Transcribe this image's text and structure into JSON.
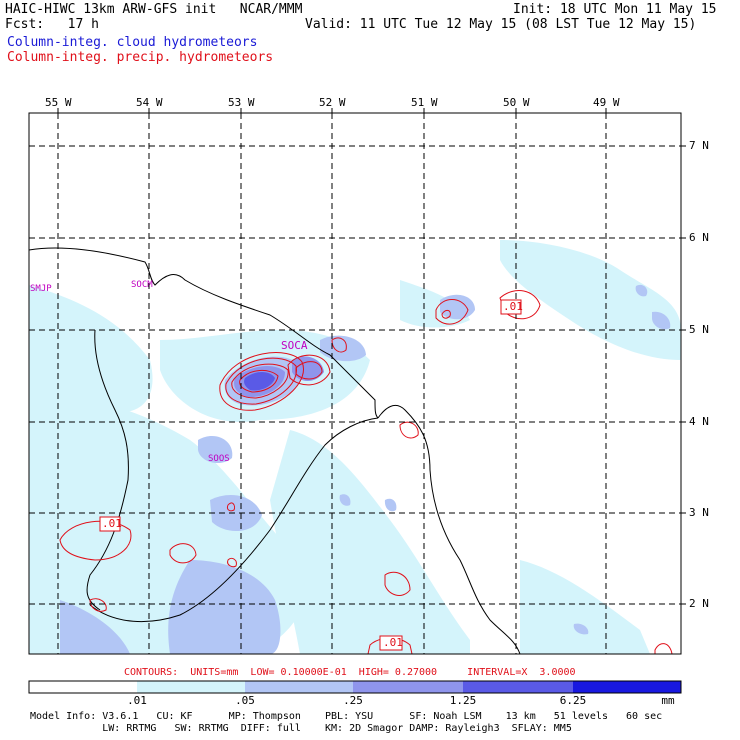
{
  "header": {
    "left_line1": "HAIC-HIWC 13km ARW-GFS init   NCAR/MMM",
    "left_line2": "Fcst:   17 h",
    "right_line1": "Init: 18 UTC Mon 11 May 15",
    "right_line2": "Valid: 11 UTC Tue 12 May 15 (08 LST Tue 12 May 15)",
    "legend_cloud": "Column-integ. cloud hydrometeors",
    "legend_precip": "Column-integ. precip. hydrometeors"
  },
  "map": {
    "lon_labels": [
      "55 W",
      "54 W",
      "53 W",
      "52 W",
      "51 W",
      "50 W",
      "49 W"
    ],
    "lat_labels": [
      "7 N",
      "6 N",
      "5 N",
      "4 N",
      "3 N",
      "2 N"
    ],
    "station_labels": [
      "SMJP",
      "SOCM",
      "SOCA",
      "SOOS"
    ],
    "contour_labels": [
      ".01",
      ".01",
      ".01"
    ]
  },
  "contour_info": "CONTOURS:  UNITS=mm  LOW= 0.10000E-01  HIGH= 0.27000     INTERVAL=X  3.0000",
  "colorbar": {
    "ticks": [
      ".01",
      ".05",
      ".25",
      "1.25",
      "6.25"
    ],
    "units": "mm",
    "colors": [
      "#ffffff",
      "#d4f4fb",
      "#b2c6f5",
      "#8f95ec",
      "#5a5ae6",
      "#1818e0"
    ]
  },
  "footer": {
    "line1": "Model Info: V3.6.1   CU: KF      MP: Thompson    PBL: YSU      SF: Noah LSM    13 km   51 levels   60 sec",
    "line2": "            LW: RRTMG   SW: RRTMG  DIFF: full    KM: 2D Smagor DAMP: Rayleigh3  SFLAY: MM5"
  }
}
